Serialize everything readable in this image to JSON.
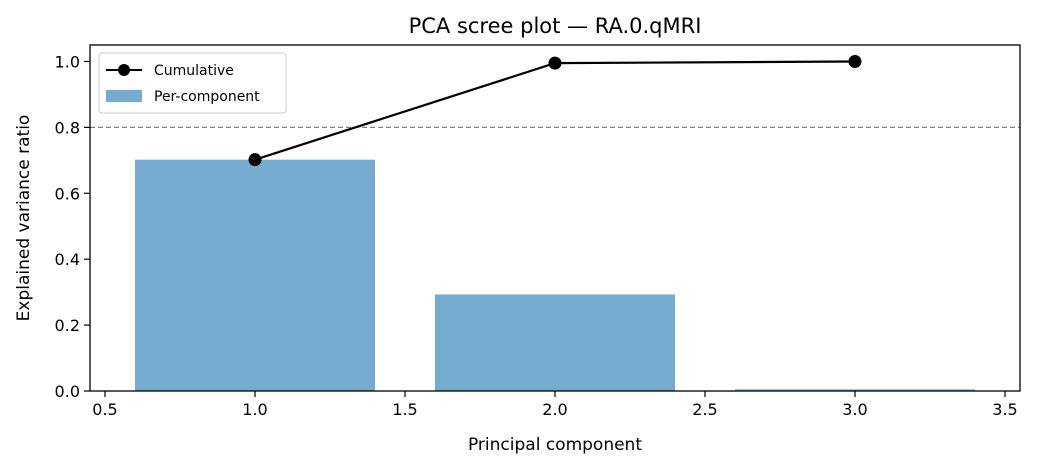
{
  "chart_data": {
    "type": "bar",
    "title": "PCA scree plot — RA.0.qMRI",
    "xlabel": "Principal component",
    "ylabel": "Explained variance ratio",
    "xlim": [
      0.45,
      3.55
    ],
    "ylim": [
      0.0,
      1.05
    ],
    "xticks": [
      0.5,
      1.0,
      1.5,
      2.0,
      2.5,
      3.0,
      3.5
    ],
    "xtick_labels": [
      "0.5",
      "1.0",
      "1.5",
      "2.0",
      "2.5",
      "3.0",
      "3.5"
    ],
    "yticks": [
      0.0,
      0.2,
      0.4,
      0.6,
      0.8,
      1.0
    ],
    "ytick_labels": [
      "0.0",
      "0.2",
      "0.4",
      "0.6",
      "0.8",
      "1.0"
    ],
    "categories": [
      1,
      2,
      3
    ],
    "series": [
      {
        "name": "Per-component",
        "type": "bar",
        "values": [
          0.702,
          0.293,
          0.005
        ],
        "color": "#74abcf",
        "bar_width": 0.8
      },
      {
        "name": "Cumulative",
        "type": "line",
        "values": [
          0.702,
          0.995,
          1.0
        ],
        "color": "#000000",
        "marker": "o"
      }
    ],
    "reference_line": {
      "y": 0.8,
      "style": "dashed",
      "color": "#808080"
    },
    "legend": {
      "position": "upper left",
      "entries": [
        "Cumulative",
        "Per-component"
      ]
    },
    "grid": false
  }
}
